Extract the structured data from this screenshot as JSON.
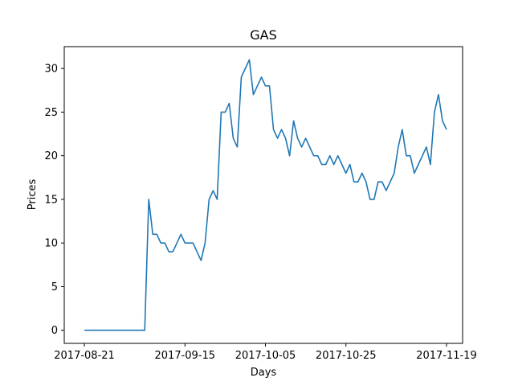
{
  "chart_data": {
    "type": "line",
    "title": "GAS",
    "xlabel": "Days",
    "ylabel": "Prices",
    "x_tick_labels": [
      "2017-08-21",
      "2017-09-15",
      "2017-10-05",
      "2017-10-25",
      "2017-11-19"
    ],
    "x_tick_dates": [
      "2017-08-21",
      "2017-09-15",
      "2017-10-05",
      "2017-10-25",
      "2017-11-19"
    ],
    "y_ticks": [
      0,
      5,
      10,
      15,
      20,
      25,
      30
    ],
    "xlim": [
      "2017-08-16",
      "2017-11-23"
    ],
    "ylim": [
      -1.5,
      32.5
    ],
    "grid": false,
    "series": [
      {
        "color": "#1f77b4",
        "x": [
          "2017-08-21",
          "2017-08-22",
          "2017-08-23",
          "2017-08-24",
          "2017-08-25",
          "2017-08-26",
          "2017-08-27",
          "2017-08-28",
          "2017-08-29",
          "2017-08-30",
          "2017-08-31",
          "2017-09-01",
          "2017-09-02",
          "2017-09-03",
          "2017-09-04",
          "2017-09-05",
          "2017-09-06",
          "2017-09-07",
          "2017-09-08",
          "2017-09-09",
          "2017-09-10",
          "2017-09-11",
          "2017-09-12",
          "2017-09-13",
          "2017-09-14",
          "2017-09-15",
          "2017-09-16",
          "2017-09-17",
          "2017-09-18",
          "2017-09-19",
          "2017-09-20",
          "2017-09-21",
          "2017-09-22",
          "2017-09-23",
          "2017-09-24",
          "2017-09-25",
          "2017-09-26",
          "2017-09-27",
          "2017-09-28",
          "2017-09-29",
          "2017-09-30",
          "2017-10-01",
          "2017-10-02",
          "2017-10-03",
          "2017-10-04",
          "2017-10-05",
          "2017-10-06",
          "2017-10-07",
          "2017-10-08",
          "2017-10-09",
          "2017-10-10",
          "2017-10-11",
          "2017-10-12",
          "2017-10-13",
          "2017-10-14",
          "2017-10-15",
          "2017-10-16",
          "2017-10-17",
          "2017-10-18",
          "2017-10-19",
          "2017-10-20",
          "2017-10-21",
          "2017-10-22",
          "2017-10-23",
          "2017-10-24",
          "2017-10-25",
          "2017-10-26",
          "2017-10-27",
          "2017-10-28",
          "2017-10-29",
          "2017-10-30",
          "2017-10-31",
          "2017-11-01",
          "2017-11-02",
          "2017-11-03",
          "2017-11-04",
          "2017-11-05",
          "2017-11-06",
          "2017-11-07",
          "2017-11-08",
          "2017-11-09",
          "2017-11-10",
          "2017-11-11",
          "2017-11-12",
          "2017-11-13",
          "2017-11-14",
          "2017-11-15",
          "2017-11-16",
          "2017-11-17",
          "2017-11-18",
          "2017-11-19"
        ],
        "values": [
          0,
          0,
          0,
          0,
          0,
          0,
          0,
          0,
          0,
          0,
          0,
          0,
          0,
          0,
          0,
          0,
          15,
          11,
          11,
          10,
          10,
          9,
          9,
          10,
          11,
          10,
          10,
          10,
          9,
          8,
          10,
          15,
          16,
          15,
          25,
          25,
          26,
          22,
          21,
          29,
          30,
          31,
          27,
          28,
          29,
          28,
          28,
          23,
          22,
          23,
          22,
          20,
          24,
          22,
          21,
          22,
          21,
          20,
          20,
          19,
          19,
          20,
          19,
          20,
          19,
          18,
          19,
          17,
          17,
          18,
          17,
          15,
          15,
          17,
          17,
          16,
          17,
          18,
          21,
          23,
          20,
          20,
          18,
          19,
          20,
          21,
          19,
          25,
          27,
          24,
          23
        ]
      }
    ]
  }
}
